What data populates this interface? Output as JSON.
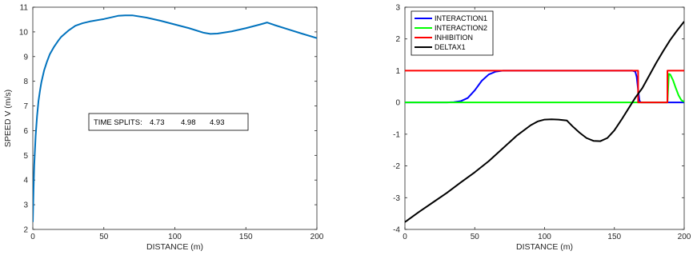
{
  "chart_data": [
    {
      "type": "line",
      "xlabel": "DISTANCE (m)",
      "ylabel": "SPEED V (m/s)",
      "xlim": [
        0,
        200
      ],
      "ylim": [
        2,
        11
      ],
      "xticks": [
        "0",
        "50",
        "100",
        "150",
        "200"
      ],
      "yticks": [
        "2",
        "3",
        "4",
        "5",
        "6",
        "7",
        "8",
        "9",
        "10",
        "11"
      ],
      "grid": false,
      "annotation": {
        "label": "TIME SPLITS:",
        "values": [
          "4.73",
          "4.98",
          "4.93"
        ]
      },
      "series": [
        {
          "color": "#0072bd",
          "x": [
            0,
            0.5,
            1,
            2,
            3,
            4,
            5,
            6,
            8,
            10,
            12,
            15,
            18,
            20,
            25,
            30,
            35,
            40,
            50,
            60,
            65,
            70,
            80,
            90,
            100,
            110,
            120,
            125,
            130,
            140,
            150,
            160,
            165,
            170,
            180,
            190,
            200
          ],
          "y": [
            2.3,
            3.6,
            4.6,
            5.8,
            6.6,
            7.2,
            7.6,
            7.95,
            8.45,
            8.8,
            9.1,
            9.4,
            9.65,
            9.8,
            10.05,
            10.25,
            10.35,
            10.42,
            10.52,
            10.65,
            10.67,
            10.67,
            10.58,
            10.45,
            10.3,
            10.15,
            9.97,
            9.92,
            9.93,
            10.02,
            10.15,
            10.3,
            10.38,
            10.28,
            10.1,
            9.92,
            9.75
          ]
        }
      ]
    },
    {
      "type": "line",
      "xlabel": "DISTANCE (m)",
      "ylabel": "",
      "xlim": [
        0,
        200
      ],
      "ylim": [
        -4,
        3
      ],
      "xticks": [
        "0",
        "50",
        "100",
        "150",
        "200"
      ],
      "yticks": [
        "-4",
        "-3",
        "-2",
        "-1",
        "0",
        "1",
        "2",
        "3"
      ],
      "grid": false,
      "legend_position": "top-left",
      "series": [
        {
          "name": "INTERACTION1",
          "color": "#0000ff",
          "x": [
            0,
            30,
            35,
            40,
            45,
            50,
            55,
            60,
            65,
            70,
            80,
            100,
            120,
            140,
            160,
            163,
            165,
            166,
            167,
            168,
            169,
            170,
            180,
            190,
            200
          ],
          "y": [
            0,
            0,
            0.01,
            0.04,
            0.14,
            0.38,
            0.68,
            0.88,
            0.97,
            1.0,
            1.0,
            1.0,
            1.0,
            1.0,
            1.0,
            1.0,
            0.97,
            0.8,
            0.4,
            0.05,
            0,
            0,
            0,
            0,
            0
          ]
        },
        {
          "name": "INTERACTION2",
          "color": "#00ff00",
          "x": [
            0,
            50,
            100,
            150,
            185,
            188,
            189,
            190,
            192,
            194,
            196,
            198,
            200
          ],
          "y": [
            0,
            0,
            0,
            0,
            0,
            0,
            0.9,
            0.88,
            0.7,
            0.45,
            0.22,
            0.07,
            0.02
          ]
        },
        {
          "name": "INHIBITION",
          "color": "#ff0000",
          "x": [
            0,
            50,
            100,
            150,
            167,
            167,
            185,
            188,
            188,
            200
          ],
          "y": [
            1,
            1,
            1,
            1,
            1,
            0,
            0,
            0,
            1,
            1
          ]
        },
        {
          "name": "DELTAX1",
          "color": "#000000",
          "x": [
            0,
            10,
            20,
            30,
            40,
            50,
            60,
            70,
            80,
            90,
            95,
            100,
            105,
            110,
            116,
            120,
            125,
            130,
            135,
            140,
            145,
            150,
            155,
            160,
            165,
            170,
            175,
            180,
            185,
            190,
            195,
            200
          ],
          "y": [
            -3.77,
            -3.45,
            -3.15,
            -2.85,
            -2.52,
            -2.2,
            -1.85,
            -1.45,
            -1.05,
            -0.72,
            -0.6,
            -0.54,
            -0.53,
            -0.54,
            -0.57,
            -0.75,
            -0.95,
            -1.12,
            -1.21,
            -1.22,
            -1.12,
            -0.88,
            -0.55,
            -0.2,
            0.15,
            0.45,
            0.85,
            1.25,
            1.62,
            1.97,
            2.27,
            2.55
          ]
        }
      ]
    }
  ]
}
